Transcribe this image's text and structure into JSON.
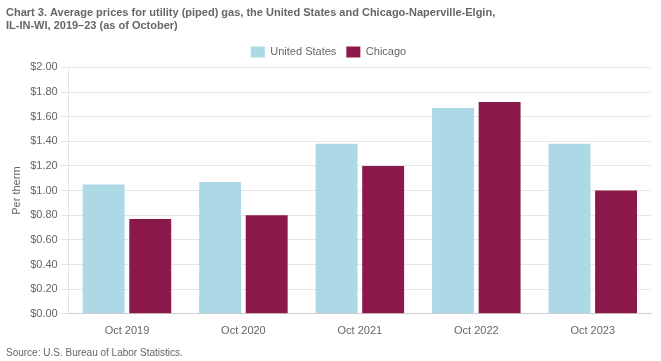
{
  "chart_data": {
    "type": "bar",
    "title": [
      "Chart 3. Average prices for utility (piped) gas, the United States and Chicago-Naperville-Elgin,",
      "IL-IN-WI, 2019–23 (as of October)"
    ],
    "ylabel": "Per therm",
    "annotations": [
      "Source: U.S. Bureau of Labor Statistics."
    ],
    "categories": [
      "Oct 2019",
      "Oct 2020",
      "Oct 2021",
      "Oct 2022",
      "Oct 2023"
    ],
    "series": [
      {
        "name": "United States",
        "color": "#add8e6",
        "values": [
          1.05,
          1.07,
          1.38,
          1.67,
          1.38
        ]
      },
      {
        "name": "Chicago",
        "color": "#8b1a4a",
        "values": [
          0.77,
          0.8,
          1.2,
          1.72,
          1.0
        ]
      }
    ],
    "ylim": [
      0,
      2.0
    ],
    "yticks": [
      {
        "value": 0.0,
        "label": "$0.00"
      },
      {
        "value": 0.2,
        "label": "$0.20"
      },
      {
        "value": 0.4,
        "label": "$0.40"
      },
      {
        "value": 0.6,
        "label": "$0.60"
      },
      {
        "value": 0.8,
        "label": "$0.80"
      },
      {
        "value": 1.0,
        "label": "$1.00"
      },
      {
        "value": 1.2,
        "label": "$1.20"
      },
      {
        "value": 1.4,
        "label": "$1.40"
      },
      {
        "value": 1.6,
        "label": "$1.60"
      },
      {
        "value": 1.8,
        "label": "$1.80"
      },
      {
        "value": 2.0,
        "label": "$2.00"
      }
    ],
    "grid": true,
    "legend": "top"
  }
}
